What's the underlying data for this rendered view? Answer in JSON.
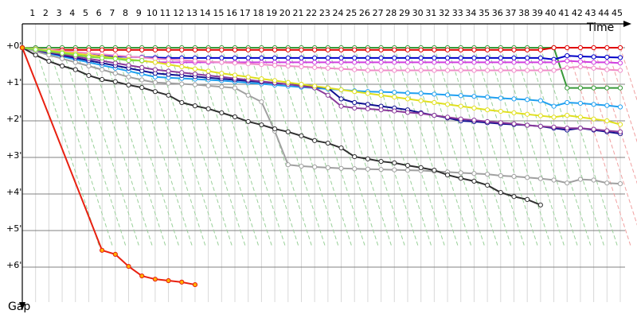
{
  "chart_data": {
    "type": "line",
    "x_label": "Time",
    "y_label": "Gap",
    "xlim": [
      0,
      45
    ],
    "ylim": [
      0,
      7
    ],
    "xticks": [
      1,
      2,
      3,
      4,
      5,
      6,
      7,
      8,
      9,
      10,
      11,
      12,
      13,
      14,
      15,
      16,
      17,
      18,
      19,
      20,
      21,
      22,
      23,
      24,
      25,
      26,
      27,
      28,
      29,
      30,
      31,
      32,
      33,
      34,
      35,
      36,
      37,
      38,
      39,
      40,
      41,
      42,
      43,
      44,
      45
    ],
    "yticks": [
      {
        "value": 0,
        "label": "+0'"
      },
      {
        "value": 1,
        "label": "+1'"
      },
      {
        "value": 2,
        "label": "+2'"
      },
      {
        "value": 3,
        "label": "+3'"
      },
      {
        "value": 4,
        "label": "+4'"
      },
      {
        "value": 5,
        "label": "+5'"
      },
      {
        "value": 6,
        "label": "+6'"
      }
    ],
    "grid": true,
    "x": [
      0,
      1,
      2,
      3,
      4,
      5,
      6,
      7,
      8,
      9,
      10,
      11,
      12,
      13,
      14,
      15,
      16,
      17,
      18,
      19,
      20,
      21,
      22,
      23,
      24,
      25,
      26,
      27,
      28,
      29,
      30,
      31,
      32,
      33,
      34,
      35,
      36,
      37,
      38,
      39,
      40,
      41,
      42,
      43,
      44,
      45
    ],
    "series": [
      {
        "color": "#3a9a3a",
        "values": [
          0,
          0,
          0,
          0,
          0,
          0,
          0,
          0,
          0,
          0,
          0,
          0,
          0,
          0,
          0,
          0,
          0,
          0,
          0,
          0,
          0,
          0,
          0,
          0,
          0,
          0,
          0,
          0,
          0,
          0,
          0,
          0,
          0,
          0,
          0,
          0,
          0,
          0,
          0,
          0,
          0,
          1.1,
          1.1,
          1.1,
          1.1,
          1.1
        ]
      },
      {
        "color": "#e00000",
        "values": [
          0,
          0.06,
          0.06,
          0.06,
          0.06,
          0.06,
          0.06,
          0.06,
          0.06,
          0.06,
          0.06,
          0.06,
          0.06,
          0.06,
          0.06,
          0.06,
          0.06,
          0.06,
          0.06,
          0.06,
          0.06,
          0.06,
          0.06,
          0.06,
          0.06,
          0.06,
          0.06,
          0.06,
          0.06,
          0.06,
          0.06,
          0.06,
          0.06,
          0.06,
          0.06,
          0.06,
          0.06,
          0.06,
          0.06,
          0.06,
          0,
          0,
          0,
          0,
          0,
          0
        ]
      },
      {
        "color": "#0000c8",
        "values": [
          0,
          0.05,
          0.1,
          0.14,
          0.18,
          0.2,
          0.22,
          0.24,
          0.25,
          0.26,
          0.27,
          0.28,
          0.28,
          0.28,
          0.28,
          0.28,
          0.28,
          0.28,
          0.28,
          0.28,
          0.28,
          0.28,
          0.28,
          0.28,
          0.28,
          0.28,
          0.28,
          0.28,
          0.28,
          0.28,
          0.28,
          0.28,
          0.28,
          0.28,
          0.28,
          0.28,
          0.28,
          0.28,
          0.28,
          0.28,
          0.32,
          0.22,
          0.24,
          0.25,
          0.26,
          0.27
        ]
      },
      {
        "color": "#d040e0",
        "values": [
          0,
          0.04,
          0.08,
          0.12,
          0.16,
          0.2,
          0.24,
          0.28,
          0.32,
          0.36,
          0.4,
          0.4,
          0.4,
          0.4,
          0.4,
          0.4,
          0.4,
          0.4,
          0.4,
          0.4,
          0.4,
          0.4,
          0.4,
          0.4,
          0.4,
          0.4,
          0.4,
          0.4,
          0.4,
          0.4,
          0.4,
          0.4,
          0.4,
          0.4,
          0.4,
          0.4,
          0.4,
          0.4,
          0.4,
          0.4,
          0.4,
          0.36,
          0.38,
          0.4,
          0.4,
          0.42
        ]
      },
      {
        "color": "#f08cc8",
        "values": [
          0,
          0.03,
          0.06,
          0.09,
          0.12,
          0.15,
          0.18,
          0.21,
          0.24,
          0.27,
          0.3,
          0.32,
          0.34,
          0.36,
          0.38,
          0.4,
          0.42,
          0.44,
          0.46,
          0.48,
          0.5,
          0.52,
          0.54,
          0.56,
          0.58,
          0.6,
          0.62,
          0.62,
          0.62,
          0.62,
          0.62,
          0.62,
          0.62,
          0.62,
          0.62,
          0.62,
          0.62,
          0.62,
          0.62,
          0.62,
          0.62,
          0.55,
          0.52,
          0.56,
          0.6,
          0.62
        ]
      },
      {
        "color": "#20a0f0",
        "values": [
          0,
          0.08,
          0.16,
          0.24,
          0.32,
          0.4,
          0.48,
          0.56,
          0.64,
          0.72,
          0.8,
          0.82,
          0.84,
          0.86,
          0.88,
          0.9,
          0.93,
          0.96,
          0.99,
          1.02,
          1.05,
          1.08,
          1.1,
          1.13,
          1.15,
          1.18,
          1.2,
          1.21,
          1.22,
          1.24,
          1.25,
          1.27,
          1.29,
          1.31,
          1.33,
          1.35,
          1.38,
          1.4,
          1.42,
          1.45,
          1.6,
          1.5,
          1.52,
          1.55,
          1.58,
          1.62
        ]
      },
      {
        "color": "#101090",
        "values": [
          0,
          0.07,
          0.14,
          0.21,
          0.28,
          0.35,
          0.42,
          0.49,
          0.56,
          0.63,
          0.7,
          0.73,
          0.76,
          0.79,
          0.82,
          0.85,
          0.88,
          0.91,
          0.94,
          0.97,
          1.0,
          1.03,
          1.07,
          1.1,
          1.4,
          1.5,
          1.55,
          1.6,
          1.65,
          1.7,
          1.78,
          1.85,
          1.92,
          2.0,
          2.02,
          2.05,
          2.08,
          2.1,
          2.12,
          2.15,
          2.2,
          2.25,
          2.2,
          2.25,
          2.3,
          2.35
        ]
      },
      {
        "color": "#8a3a9a",
        "values": [
          0,
          0.06,
          0.12,
          0.18,
          0.24,
          0.3,
          0.36,
          0.42,
          0.48,
          0.54,
          0.6,
          0.64,
          0.68,
          0.72,
          0.76,
          0.8,
          0.84,
          0.88,
          0.92,
          0.96,
          1.0,
          1.05,
          1.1,
          1.3,
          1.6,
          1.65,
          1.67,
          1.7,
          1.73,
          1.77,
          1.8,
          1.85,
          1.9,
          1.95,
          1.98,
          2.02,
          2.05,
          2.08,
          2.12,
          2.15,
          2.17,
          2.2,
          2.2,
          2.23,
          2.27,
          2.3
        ]
      },
      {
        "color": "#e0e020",
        "values": [
          0,
          0.04,
          0.08,
          0.12,
          0.16,
          0.2,
          0.24,
          0.28,
          0.32,
          0.36,
          0.4,
          0.46,
          0.52,
          0.58,
          0.64,
          0.7,
          0.75,
          0.8,
          0.85,
          0.9,
          0.95,
          1.0,
          1.05,
          1.1,
          1.15,
          1.2,
          1.25,
          1.3,
          1.35,
          1.4,
          1.45,
          1.5,
          1.55,
          1.6,
          1.65,
          1.7,
          1.74,
          1.78,
          1.82,
          1.86,
          1.9,
          1.85,
          1.9,
          1.95,
          2.0,
          2.1
        ]
      },
      {
        "color": "#a0a0a0",
        "values": [
          0,
          0.1,
          0.2,
          0.3,
          0.4,
          0.5,
          0.6,
          0.7,
          0.8,
          0.88,
          0.95,
          0.97,
          0.99,
          1.01,
          1.04,
          1.07,
          1.1,
          1.3,
          1.48,
          2.28,
          3.2,
          3.24,
          3.26,
          3.28,
          3.3,
          3.31,
          3.32,
          3.33,
          3.34,
          3.35,
          3.36,
          3.38,
          3.4,
          3.42,
          3.44,
          3.46,
          3.5,
          3.52,
          3.55,
          3.58,
          3.62,
          3.7,
          3.6,
          3.62,
          3.7,
          3.72
        ]
      },
      {
        "color": "#303030",
        "values": [
          0,
          0.2,
          0.37,
          0.5,
          0.6,
          0.76,
          0.87,
          0.93,
          1.02,
          1.09,
          1.2,
          1.3,
          1.5,
          1.59,
          1.67,
          1.78,
          1.89,
          2.02,
          2.11,
          2.22,
          2.3,
          2.41,
          2.54,
          2.61,
          2.74,
          2.98,
          3.04,
          3.11,
          3.15,
          3.22,
          3.28,
          3.35,
          3.48,
          3.57,
          3.65,
          3.76,
          3.96,
          4.07,
          4.15,
          4.3,
          null,
          null,
          null,
          null,
          null,
          null
        ]
      },
      {
        "color": "#80e040",
        "values": [
          0,
          0.05,
          0.1,
          0.15,
          0.2,
          0.25,
          0.28,
          0.3,
          0.35,
          0.35,
          null,
          null,
          null,
          null,
          null,
          null,
          null,
          null,
          null,
          null,
          null,
          null,
          null,
          null,
          null,
          null,
          null,
          null,
          null,
          null,
          null,
          null,
          null,
          null,
          null,
          null,
          null,
          null,
          null,
          null,
          null,
          null,
          null,
          null,
          null,
          null
        ]
      },
      {
        "color": "#e82010",
        "marker_fill": "#ffb000",
        "x": [
          0,
          6,
          7,
          8,
          9,
          10,
          11,
          12,
          13
        ],
        "values": [
          0,
          5.54,
          5.65,
          5.98,
          6.24,
          6.33,
          6.37,
          6.41,
          6.48
        ]
      }
    ]
  }
}
